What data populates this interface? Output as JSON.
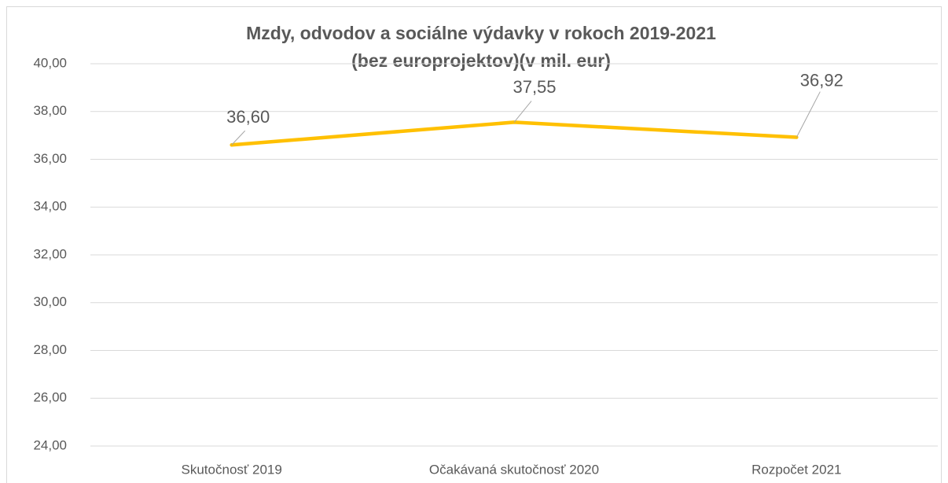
{
  "chart_data": {
    "type": "line",
    "title": [
      "Mzdy, odvodov a sociálne výdavky v rokoch 2019-2021",
      "(bez europrojektov)(v mil. eur)"
    ],
    "categories": [
      "Skutočnosť 2019",
      "Očakávaná skutočnosť 2020",
      "Rozpočet 2021"
    ],
    "series": [
      {
        "name": "Mzdy, odvodov a sociálne výdavky",
        "color": "#ffc000",
        "values": [
          36.6,
          37.55,
          36.92
        ],
        "value_labels": [
          "36,60",
          "37,55",
          "36,92"
        ]
      }
    ],
    "ylim": [
      24,
      40
    ],
    "yticks": [
      {
        "value": 24,
        "label": "24,00"
      },
      {
        "value": 26,
        "label": "26,00"
      },
      {
        "value": 28,
        "label": "28,00"
      },
      {
        "value": 30,
        "label": "30,00"
      },
      {
        "value": 32,
        "label": "32,00"
      },
      {
        "value": 34,
        "label": "34,00"
      },
      {
        "value": 36,
        "label": "36,00"
      },
      {
        "value": 38,
        "label": "38,00"
      },
      {
        "value": 40,
        "label": "40,00"
      }
    ],
    "grid": true
  }
}
